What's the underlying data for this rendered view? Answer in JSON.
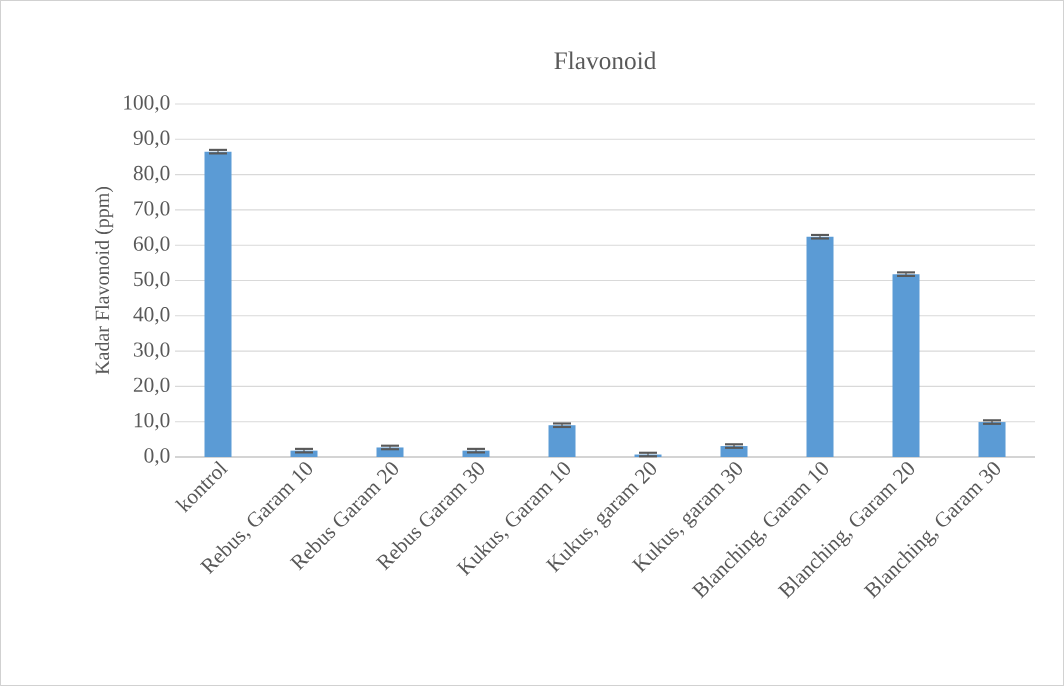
{
  "chart_data": {
    "type": "bar",
    "title": "Flavonoid",
    "ylabel": "Kadar Flavonoid (ppm)",
    "categories": [
      "kontrol",
      "Rebus, Garam 10",
      "Rebus Garam 20",
      "Rebus Garam 30",
      "Kukus, Garam 10",
      "Kukus, garam 20",
      "Kukus, garam 30",
      "Blanching, Garam 10",
      "Blanching, Garam 20",
      "Blanching, Garam 30"
    ],
    "values": [
      86.5,
      1.8,
      2.7,
      1.8,
      9.0,
      0.7,
      3.1,
      62.4,
      51.8,
      9.9
    ],
    "errors": [
      0.5,
      0.5,
      0.5,
      0.5,
      0.5,
      0.5,
      0.5,
      0.5,
      0.5,
      0.5
    ],
    "color": "#5b9bd5",
    "ylim": [
      0,
      100
    ],
    "yticks": [
      {
        "value": 0,
        "label": "0,0"
      },
      {
        "value": 10,
        "label": "10,0"
      },
      {
        "value": 20,
        "label": "20,0"
      },
      {
        "value": 30,
        "label": "30,0"
      },
      {
        "value": 40,
        "label": "40,0"
      },
      {
        "value": 50,
        "label": "50,0"
      },
      {
        "value": 60,
        "label": "60,0"
      },
      {
        "value": 70,
        "label": "70,0"
      },
      {
        "value": 80,
        "label": "80,0"
      },
      {
        "value": 90,
        "label": "90,0"
      },
      {
        "value": 100,
        "label": "100,0"
      }
    ],
    "grid": "y"
  }
}
